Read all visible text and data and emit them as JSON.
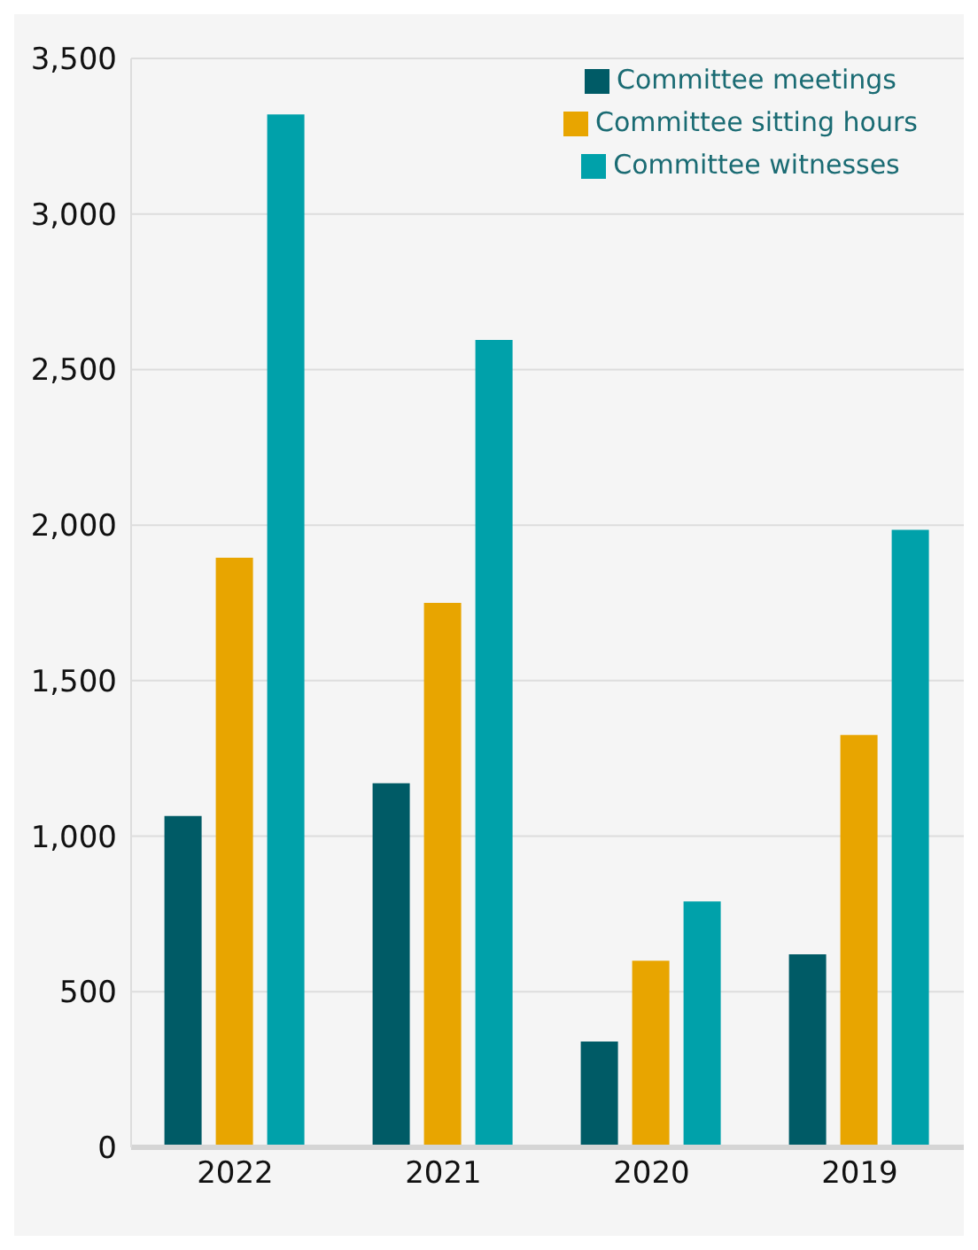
{
  "chart_data": {
    "type": "bar",
    "categories": [
      "2022",
      "2021",
      "2020",
      "2019"
    ],
    "series": [
      {
        "name": "Committee meetings",
        "color": "#005b66",
        "values": [
          1065,
          1170,
          340,
          620
        ]
      },
      {
        "name": "Committee sitting hours",
        "color": "#e8a500",
        "values": [
          1895,
          1750,
          600,
          1325
        ]
      },
      {
        "name": "Committee witnesses",
        "color": "#00a1aa",
        "values": [
          3320,
          2595,
          790,
          1985
        ]
      }
    ],
    "ylim": [
      0,
      3500
    ],
    "yticks": [
      0,
      500,
      {
        "value": 1000,
        "label": "1,000"
      },
      {
        "value": 1500,
        "label": "1,500"
      },
      {
        "value": 2000,
        "label": "2,000"
      },
      {
        "value": 2500,
        "label": "2,500"
      },
      {
        "value": 3000,
        "label": "3,000"
      },
      {
        "value": 3500,
        "label": "3,500"
      }
    ],
    "grid": "y",
    "legend": "top right"
  }
}
